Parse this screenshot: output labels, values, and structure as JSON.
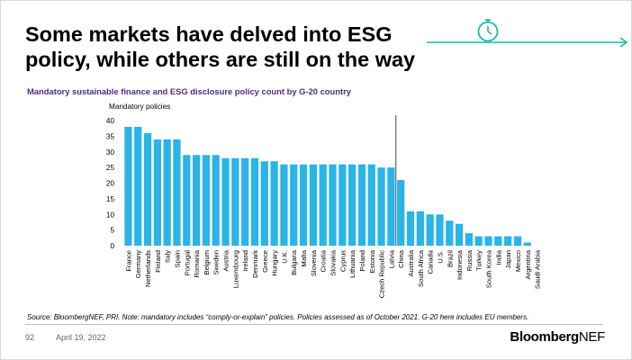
{
  "header": {
    "title_line1": "Some markets have delved into ESG",
    "title_line2": "policy, while others are still on the way",
    "icon": "stopwatch-icon",
    "accent_color": "#1fb8a6"
  },
  "chart_data": {
    "type": "bar",
    "title": "Mandatory sustainable finance and ESG disclosure policy count by G-20 country",
    "ylabel": "Mandatory policies",
    "xlabel": "",
    "ylim": [
      0,
      40
    ],
    "yticks": [
      0,
      5,
      10,
      15,
      20,
      25,
      30,
      35,
      40
    ],
    "grid": false,
    "bar_color": "#2ab4e8",
    "divider_after": "Latvia",
    "categories": [
      "France",
      "Germany",
      "Netherlands",
      "Finland",
      "Italy",
      "Spain",
      "Portugal",
      "Romania",
      "Belgium",
      "Sweden",
      "Austria",
      "Luxembourg",
      "Ireland",
      "Denmark",
      "Greece",
      "Hungary",
      "U.K.",
      "Bulgaria",
      "Malta",
      "Slovenia",
      "Croatia",
      "Slovakia",
      "Cyprus",
      "Lithuania",
      "Poland",
      "Estonia",
      "Czech Republic",
      "Latvia",
      "China",
      "Australia",
      "South Africa",
      "Canada",
      "U.S.",
      "Brazil",
      "Indonesia",
      "Russia",
      "Turkey",
      "South Korea",
      "India",
      "Japan",
      "Mexico",
      "Argentina",
      "Saudi Arabia"
    ],
    "values": [
      38,
      38,
      36,
      34,
      34,
      34,
      29,
      29,
      29,
      29,
      28,
      28,
      28,
      28,
      27,
      27,
      26,
      26,
      26,
      26,
      26,
      26,
      26,
      26,
      26,
      26,
      25,
      25,
      21,
      11,
      11,
      10,
      10,
      8,
      7,
      4,
      3,
      3,
      3,
      3,
      3,
      1,
      0
    ]
  },
  "footer": {
    "source": "Source: BloombergNEF, PRI. Note: mandatory includes “comply-or-explain” policies. Policies assessed as of October 2021. G-20 here includes EU members.",
    "page_number": "92",
    "date": "April 19, 2022",
    "brand_bold": "Bloomberg",
    "brand_light": "NEF"
  }
}
